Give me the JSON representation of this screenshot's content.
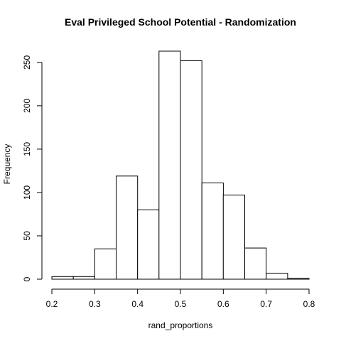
{
  "chart_data": {
    "type": "bar",
    "title": "Eval Privileged School Potential - Randomization",
    "xlabel": "rand_proportions",
    "ylabel": "Frequency",
    "bin_edges": [
      0.2,
      0.25,
      0.3,
      0.35,
      0.4,
      0.45,
      0.5,
      0.55,
      0.6,
      0.65,
      0.7,
      0.75,
      0.8
    ],
    "values": [
      3,
      3,
      35,
      119,
      80,
      263,
      252,
      111,
      97,
      36,
      7,
      1
    ],
    "xlim": [
      0.2,
      0.8
    ],
    "ylim": [
      0,
      263
    ],
    "x_ticks": [
      0.2,
      0.3,
      0.4,
      0.5,
      0.6,
      0.7,
      0.8
    ],
    "x_tick_labels": [
      "0.2",
      "0.3",
      "0.4",
      "0.5",
      "0.6",
      "0.7",
      "0.8"
    ],
    "y_ticks": [
      0,
      50,
      100,
      150,
      200,
      250
    ],
    "y_tick_labels": [
      "0",
      "50",
      "100",
      "150",
      "200",
      "250"
    ],
    "grid": false,
    "legend": "none",
    "bar_fill": "#ffffff",
    "bar_stroke": "#000000"
  }
}
